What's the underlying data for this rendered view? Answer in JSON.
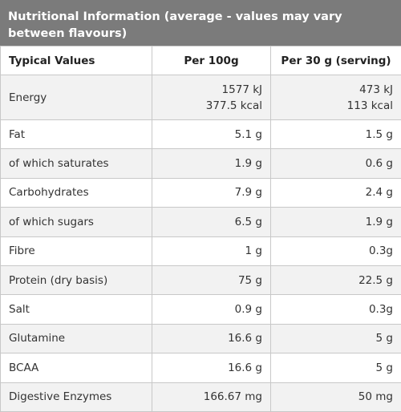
{
  "title": "Nutritional Information (average - values may vary between flavours)",
  "headers": {
    "col1": "Typical Values",
    "col2": "Per 100g",
    "col3": "Per 30 g (serving)"
  },
  "rows": [
    {
      "name": "Energy",
      "per100": [
        "1577 kJ",
        "377.5 kcal"
      ],
      "perServing": [
        "473 kJ",
        "113 kcal"
      ]
    },
    {
      "name": "Fat",
      "per100": "5.1 g",
      "perServing": "1.5 g"
    },
    {
      "name": "of which saturates",
      "per100": "1.9 g",
      "perServing": "0.6 g"
    },
    {
      "name": "Carbohydrates",
      "per100": "7.9 g",
      "perServing": "2.4 g"
    },
    {
      "name": "of which sugars",
      "per100": "6.5 g",
      "perServing": "1.9 g"
    },
    {
      "name": "Fibre",
      "per100": "1 g",
      "perServing": "0.3g"
    },
    {
      "name": "Protein (dry basis)",
      "per100": "75 g",
      "perServing": "22.5 g"
    },
    {
      "name": "Salt",
      "per100": "0.9 g",
      "perServing": "0.3g"
    },
    {
      "name": "Glutamine",
      "per100": "16.6 g",
      "perServing": "5 g"
    },
    {
      "name": "BCAA",
      "per100": "16.6 g",
      "perServing": "5 g"
    },
    {
      "name": "Digestive Enzymes",
      "per100": "166.67 mg",
      "perServing": "50 mg"
    }
  ]
}
